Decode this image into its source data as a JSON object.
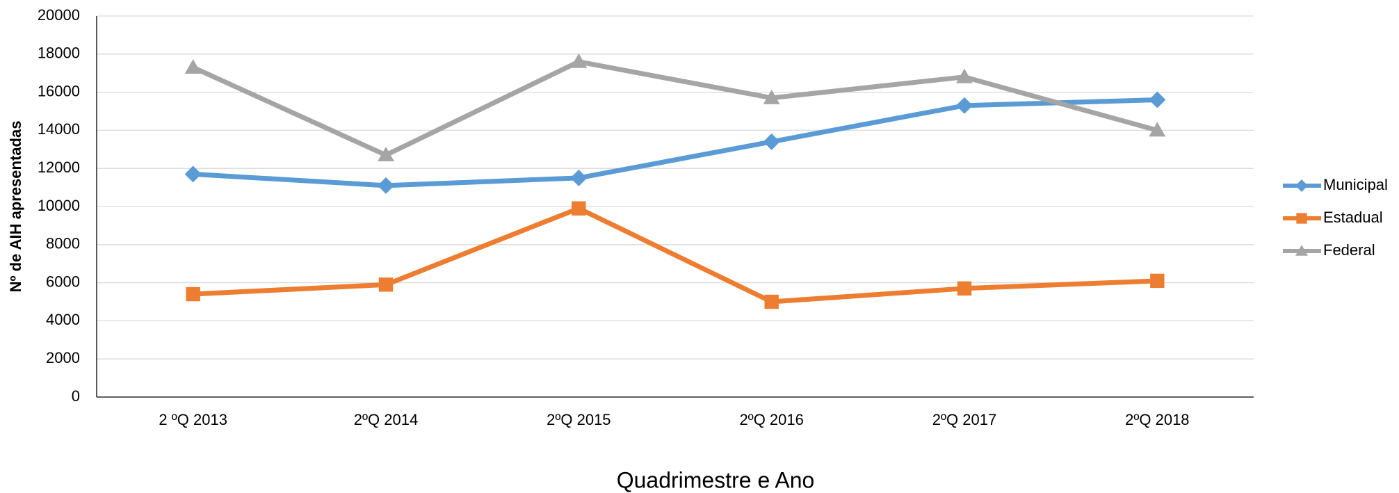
{
  "chart_data": {
    "type": "line",
    "x_label": "Quadrimestre e Ano",
    "y_label": "Nº de AIH apresentadas",
    "categories": [
      "2 ºQ 2013",
      "2ºQ 2014",
      "2ºQ 2015",
      "2ºQ 2016",
      "2ºQ 2017",
      "2ºQ 2018"
    ],
    "series": [
      {
        "name": "Municipal",
        "color": "#5b9bd5",
        "marker": "diamond",
        "values": [
          11700,
          11100,
          11500,
          13400,
          15300,
          15600
        ]
      },
      {
        "name": "Estadual",
        "color": "#ed7d31",
        "marker": "square",
        "values": [
          5400,
          5900,
          9900,
          5000,
          5700,
          6100
        ]
      },
      {
        "name": "Federal",
        "color": "#a5a5a5",
        "marker": "triangle",
        "values": [
          17300,
          12700,
          17600,
          15700,
          16800,
          14000
        ]
      }
    ],
    "ylim": [
      0,
      20000
    ],
    "yticks": [
      0,
      2000,
      4000,
      6000,
      8000,
      10000,
      12000,
      14000,
      16000,
      18000,
      20000
    ],
    "grid": true,
    "legend": "right"
  }
}
